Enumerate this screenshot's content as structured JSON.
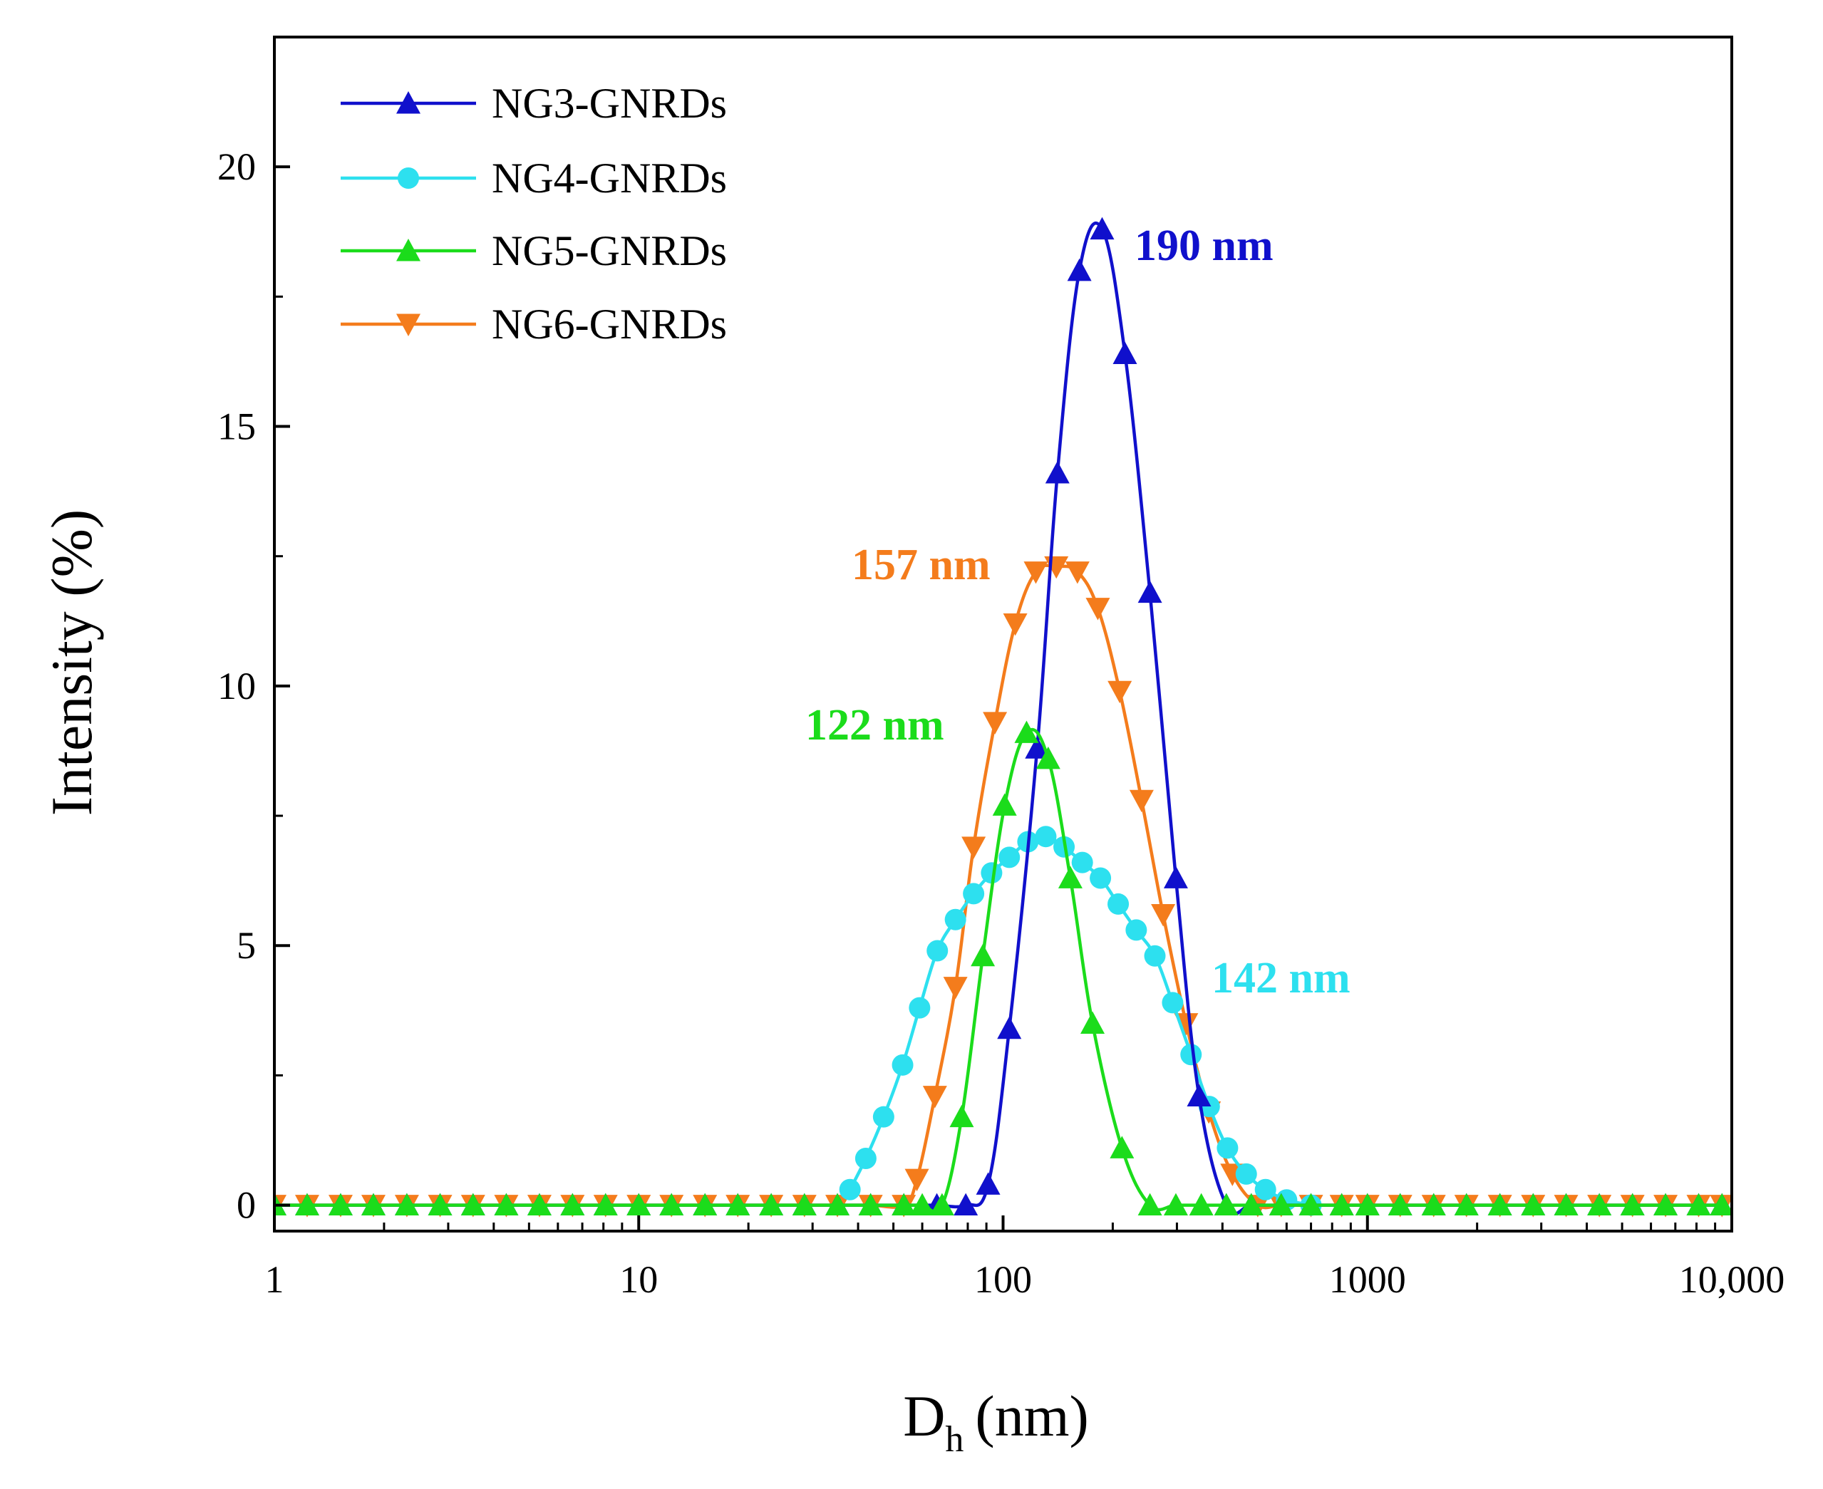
{
  "chart_data": {
    "type": "line",
    "title": "",
    "xlabel": "D",
    "xlabel_sub": "h",
    "xlabel_unit": "(nm)",
    "ylabel": "Intensity (%)",
    "xscale": "log",
    "xlim": [
      1,
      10000
    ],
    "ylim": [
      -0.5,
      22.5
    ],
    "xticks": [
      {
        "value": 1,
        "label": "1"
      },
      {
        "value": 10,
        "label": "10"
      },
      {
        "value": 100,
        "label": "100"
      },
      {
        "value": 1000,
        "label": "1000"
      },
      {
        "value": 10000,
        "label": "10,000"
      }
    ],
    "yticks": [
      {
        "value": 0,
        "label": "0"
      },
      {
        "value": 5,
        "label": "5"
      },
      {
        "value": 10,
        "label": "10"
      },
      {
        "value": 15,
        "label": "15"
      },
      {
        "value": 20,
        "label": "20"
      }
    ],
    "legend_position": "top-left",
    "series": [
      {
        "name": "NG3-GNRDs",
        "color": "#1010cc",
        "marker": "triangle-up",
        "points": [
          [
            1,
            0
          ],
          [
            1.23,
            0
          ],
          [
            1.52,
            0
          ],
          [
            1.87,
            0
          ],
          [
            2.31,
            0
          ],
          [
            2.85,
            0
          ],
          [
            3.51,
            0
          ],
          [
            4.33,
            0
          ],
          [
            5.34,
            0
          ],
          [
            6.58,
            0
          ],
          [
            8.11,
            0
          ],
          [
            10,
            0
          ],
          [
            12.3,
            0
          ],
          [
            15.2,
            0
          ],
          [
            18.7,
            0
          ],
          [
            23.1,
            0
          ],
          [
            28.5,
            0
          ],
          [
            35.1,
            0
          ],
          [
            43.3,
            0
          ],
          [
            53.4,
            0
          ],
          [
            65.8,
            0
          ],
          [
            79,
            0
          ],
          [
            91,
            0.4
          ],
          [
            104,
            3.4
          ],
          [
            124,
            8.8
          ],
          [
            141,
            14.1
          ],
          [
            162,
            18
          ],
          [
            187,
            18.8
          ],
          [
            216,
            16.4
          ],
          [
            253,
            11.8
          ],
          [
            298,
            6.3
          ],
          [
            345,
            2.1
          ],
          [
            410,
            0
          ],
          [
            480,
            0
          ],
          [
            580,
            0
          ],
          [
            700,
            0
          ],
          [
            850,
            0
          ],
          [
            1000,
            0
          ],
          [
            1230,
            0
          ],
          [
            1520,
            0
          ],
          [
            1870,
            0
          ],
          [
            2310,
            0
          ],
          [
            2850,
            0
          ],
          [
            3510,
            0
          ],
          [
            4330,
            0
          ],
          [
            5340,
            0
          ],
          [
            6580,
            0
          ],
          [
            8110,
            0
          ],
          [
            9400,
            0
          ]
        ],
        "peak_label": "190 nm"
      },
      {
        "name": "NG4-GNRDs",
        "color": "#2de0ef",
        "marker": "circle",
        "points": [
          [
            38,
            0.3
          ],
          [
            42,
            0.9
          ],
          [
            47,
            1.7
          ],
          [
            53,
            2.7
          ],
          [
            59,
            3.8
          ],
          [
            66,
            4.9
          ],
          [
            74,
            5.5
          ],
          [
            83,
            6
          ],
          [
            93,
            6.4
          ],
          [
            104,
            6.7
          ],
          [
            117,
            7
          ],
          [
            131,
            7.1
          ],
          [
            147,
            6.9
          ],
          [
            165,
            6.6
          ],
          [
            185,
            6.3
          ],
          [
            207,
            5.8
          ],
          [
            232,
            5.3
          ],
          [
            261,
            4.8
          ],
          [
            292,
            3.9
          ],
          [
            328,
            2.9
          ],
          [
            368,
            1.9
          ],
          [
            413,
            1.1
          ],
          [
            465,
            0.6
          ],
          [
            525,
            0.3
          ],
          [
            600,
            0.1
          ],
          [
            700,
            0
          ]
        ],
        "peak_label": "142 nm"
      },
      {
        "name": "NG5-GNRDs",
        "color": "#1bdc1b",
        "marker": "triangle-up",
        "points": [
          [
            1,
            0
          ],
          [
            1.23,
            0
          ],
          [
            1.52,
            0
          ],
          [
            1.87,
            0
          ],
          [
            2.31,
            0
          ],
          [
            2.85,
            0
          ],
          [
            3.51,
            0
          ],
          [
            4.33,
            0
          ],
          [
            5.34,
            0
          ],
          [
            6.58,
            0
          ],
          [
            8.11,
            0
          ],
          [
            10,
            0
          ],
          [
            12.3,
            0
          ],
          [
            15.2,
            0
          ],
          [
            18.7,
            0
          ],
          [
            23.1,
            0
          ],
          [
            28.5,
            0
          ],
          [
            35.1,
            0
          ],
          [
            43.3,
            0
          ],
          [
            53.4,
            0
          ],
          [
            60,
            0
          ],
          [
            68,
            0
          ],
          [
            77,
            1.7
          ],
          [
            88,
            4.8
          ],
          [
            101,
            7.7
          ],
          [
            116,
            9.1
          ],
          [
            133,
            8.6
          ],
          [
            153,
            6.3
          ],
          [
            176,
            3.5
          ],
          [
            212,
            1.1
          ],
          [
            253,
            0
          ],
          [
            298,
            0
          ],
          [
            350,
            0
          ],
          [
            410,
            0
          ],
          [
            480,
            0
          ],
          [
            580,
            0
          ],
          [
            700,
            0
          ],
          [
            850,
            0
          ],
          [
            1000,
            0
          ],
          [
            1230,
            0
          ],
          [
            1520,
            0
          ],
          [
            1870,
            0
          ],
          [
            2310,
            0
          ],
          [
            2850,
            0
          ],
          [
            3510,
            0
          ],
          [
            4330,
            0
          ],
          [
            5340,
            0
          ],
          [
            6580,
            0
          ],
          [
            8110,
            0
          ],
          [
            9400,
            0
          ]
        ],
        "peak_label": "122 nm"
      },
      {
        "name": "NG6-GNRDs",
        "color": "#f47c1c",
        "marker": "triangle-down",
        "points": [
          [
            1,
            0
          ],
          [
            1.23,
            0
          ],
          [
            1.52,
            0
          ],
          [
            1.87,
            0
          ],
          [
            2.31,
            0
          ],
          [
            2.85,
            0
          ],
          [
            3.51,
            0
          ],
          [
            4.33,
            0
          ],
          [
            5.34,
            0
          ],
          [
            6.58,
            0
          ],
          [
            8.11,
            0
          ],
          [
            10,
            0
          ],
          [
            12.3,
            0
          ],
          [
            15.2,
            0
          ],
          [
            18.7,
            0
          ],
          [
            23.1,
            0
          ],
          [
            28.5,
            0
          ],
          [
            35.1,
            0
          ],
          [
            43.3,
            0
          ],
          [
            53.4,
            0
          ],
          [
            58,
            0.5
          ],
          [
            65,
            2.1
          ],
          [
            74,
            4.2
          ],
          [
            83,
            6.9
          ],
          [
            95,
            9.3
          ],
          [
            108,
            11.2
          ],
          [
            123,
            12.2
          ],
          [
            140,
            12.3
          ],
          [
            160,
            12.2
          ],
          [
            182,
            11.5
          ],
          [
            209,
            9.9
          ],
          [
            240,
            7.8
          ],
          [
            275,
            5.6
          ],
          [
            318,
            3.5
          ],
          [
            367,
            1.8
          ],
          [
            426,
            0.6
          ],
          [
            500,
            0
          ],
          [
            580,
            0
          ],
          [
            700,
            0
          ],
          [
            850,
            0
          ],
          [
            1000,
            0
          ],
          [
            1230,
            0
          ],
          [
            1520,
            0
          ],
          [
            1870,
            0
          ],
          [
            2310,
            0
          ],
          [
            2850,
            0
          ],
          [
            3510,
            0
          ],
          [
            4330,
            0
          ],
          [
            5340,
            0
          ],
          [
            6580,
            0
          ],
          [
            8110,
            0
          ],
          [
            9400,
            0
          ]
        ],
        "peak_label": "157 nm"
      }
    ],
    "annotations": [
      {
        "text": "190 nm",
        "color": "#1010cc"
      },
      {
        "text": "157 nm",
        "color": "#f47c1c"
      },
      {
        "text": "122 nm",
        "color": "#1bdc1b"
      },
      {
        "text": "142 nm",
        "color": "#2de0ef"
      }
    ]
  }
}
